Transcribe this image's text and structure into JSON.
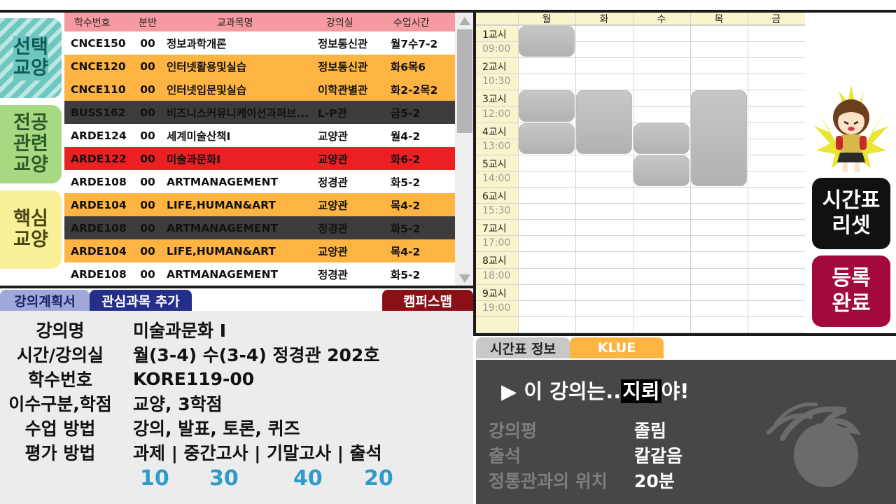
{
  "categories": [
    "선택\n교양",
    "전공\n관련\n교양",
    "핵심\n교양"
  ],
  "course_list": {
    "headers": [
      "학수번호",
      "분반",
      "교과목명",
      "강의실",
      "수업시간"
    ],
    "rows": [
      {
        "code": "CNCE150",
        "section": "00",
        "name": "정보과학개론",
        "room": "정보통신관",
        "time": "월7수7-2",
        "style": "white"
      },
      {
        "code": "CNCE120",
        "section": "00",
        "name": "인터넷활용및실습",
        "room": "정보통신관",
        "time": "화6목6",
        "style": "orange"
      },
      {
        "code": "CNCE110",
        "section": "00",
        "name": "인터넷입문및실습",
        "room": "이학관별관",
        "time": "화2-2목2",
        "style": "orange"
      },
      {
        "code": "BUSS162",
        "section": "00",
        "name": "비즈니스커뮤니케이션과퍼브...",
        "room": "L-P관",
        "time": "금5-2",
        "style": "dark"
      },
      {
        "code": "ARDE124",
        "section": "00",
        "name": "세계미술산책I",
        "room": "교양관",
        "time": "월4-2",
        "style": "white"
      },
      {
        "code": "ARDE122",
        "section": "00",
        "name": "미술과문화I",
        "room": "교양관",
        "time": "화6-2",
        "style": "red"
      },
      {
        "code": "ARDE108",
        "section": "00",
        "name": "ARTMANAGEMENT",
        "room": "정경관",
        "time": "화5-2",
        "style": "white"
      },
      {
        "code": "ARDE104",
        "section": "00",
        "name": "LIFE,HUMAN&ART",
        "room": "교양관",
        "time": "목4-2",
        "style": "orange"
      },
      {
        "code": "ARDE108",
        "section": "00",
        "name": "ARTMANAGEMENT",
        "room": "정경관",
        "time": "화5-2",
        "style": "dark"
      },
      {
        "code": "ARDE104",
        "section": "00",
        "name": "LIFE,HUMAN&ART",
        "room": "교양관",
        "time": "목4-2",
        "style": "orange"
      },
      {
        "code": "ARDE108",
        "section": "00",
        "name": "ARTMANAGEMENT",
        "room": "정경관",
        "time": "화5-2",
        "style": "white"
      }
    ]
  },
  "detail_tabs": {
    "plan": "강의계획서",
    "favorite": "관심과목 추가",
    "map": "캠퍼스맵"
  },
  "detail": {
    "fields": [
      {
        "label": "강의명",
        "value": "미술과문화 I"
      },
      {
        "label": "시간/강의실",
        "value": "월(3-4) 수(3-4) 정경관 202호"
      },
      {
        "label": "학수번호",
        "value": "KORE119-00"
      },
      {
        "label": "이수구분,학점",
        "value": "교양, 3학점"
      },
      {
        "label": "수업 방법",
        "value": "강의, 발표, 토론, 퀴즈"
      },
      {
        "label": "평가 방법",
        "value": "과제 | 중간고사 | 기말고사 | 출석"
      }
    ],
    "scores": [
      "10",
      "30",
      "40",
      "20"
    ]
  },
  "timetable": {
    "days": [
      "월",
      "화",
      "수",
      "목",
      "금"
    ],
    "periods": [
      "1교시",
      "2교시",
      "3교시",
      "4교시",
      "5교시",
      "6교시",
      "7교시",
      "8교시",
      "9교시"
    ],
    "clocks": [
      "09:00",
      "10:30",
      "12:00",
      "13:00",
      "14:00",
      "15:30",
      "17:00",
      "18:00",
      "19:00"
    ],
    "blocks": [
      {
        "day": 0,
        "start": 0,
        "span": 2
      },
      {
        "day": 0,
        "start": 4,
        "span": 2
      },
      {
        "day": 0,
        "start": 6,
        "span": 2
      },
      {
        "day": 1,
        "start": 4,
        "span": 4
      },
      {
        "day": 2,
        "start": 6,
        "span": 2
      },
      {
        "day": 2,
        "start": 8,
        "span": 2
      },
      {
        "day": 3,
        "start": 4,
        "span": 6
      }
    ]
  },
  "buttons": {
    "reset": "시간표\n리셋",
    "done": "등록\n완료"
  },
  "review_tabs": {
    "info": "시간표 정보",
    "klue": "KLUE"
  },
  "review": {
    "headline_pre": "▶ 이 강의는..",
    "headline_hl": "지뢰",
    "headline_post": "야!",
    "items": [
      {
        "key": "강의평",
        "value": "졸림"
      },
      {
        "key": "출석",
        "value": "칼같음"
      },
      {
        "key": "정통관과의 위치",
        "value": "20분"
      }
    ]
  },
  "colors": {
    "orange": "#fdb443",
    "dark": "#3c3c3c",
    "red": "#ec2024",
    "header": "#f49aa0",
    "score": "#2e9bc9",
    "done": "#a10a3a"
  }
}
